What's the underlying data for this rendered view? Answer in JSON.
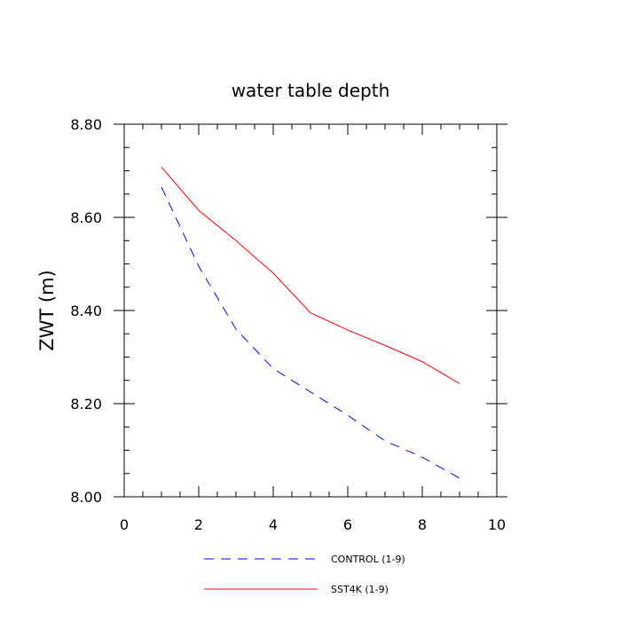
{
  "chart_data": {
    "type": "line",
    "title": "water table depth",
    "xlabel": "",
    "ylabel": "ZWT  (m)",
    "xlim": [
      0,
      10
    ],
    "ylim": [
      8.0,
      8.8
    ],
    "x_ticks": [
      "0",
      "2",
      "4",
      "6",
      "8",
      "10"
    ],
    "y_ticks": [
      "8.00",
      "8.20",
      "8.40",
      "8.60",
      "8.80"
    ],
    "grid": false,
    "legend_position": "bottom",
    "x": [
      1,
      2,
      3,
      4,
      5,
      6,
      7,
      8,
      9
    ],
    "series": [
      {
        "name": "CONTROL (1-9)",
        "color": "#0000ff",
        "style": "dashed",
        "values": [
          8.665,
          8.495,
          8.36,
          8.275,
          8.225,
          8.175,
          8.12,
          8.085,
          8.04
        ]
      },
      {
        "name": "SST4K (1-9)",
        "color": "#ff0000",
        "style": "solid",
        "values": [
          8.708,
          8.615,
          8.55,
          8.48,
          8.395,
          8.358,
          8.325,
          8.29,
          8.243
        ]
      }
    ]
  }
}
